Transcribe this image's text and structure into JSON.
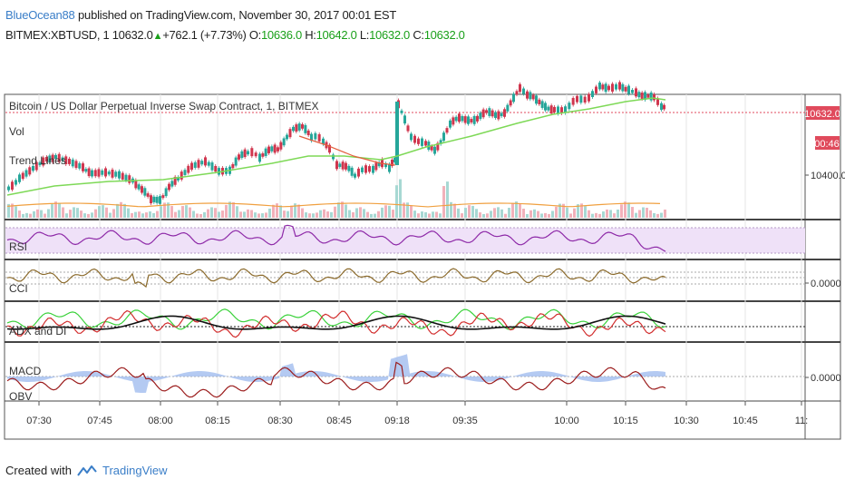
{
  "header": {
    "author": "BlueOcean88",
    "published_text": " published on TradingView.com, November 30, 2017 00:01 EST"
  },
  "ticker": {
    "symbol": "BITMEX:XBTUSD, 1",
    "last": "10632.0",
    "arrow": "▲",
    "change": "+762.1 (+7.73%)",
    "o_label": "O:",
    "o_value": "10636.0",
    "h_label": "H:",
    "h_value": "10642.0",
    "l_label": "L:",
    "l_value": "10632.0",
    "c_label": "C:",
    "c_value": "10632.0"
  },
  "main_pane": {
    "title": "Bitcoin / US Dollar Perpetual Inverse Swap Contract, 1, BITMEX",
    "vol_label": "Vol",
    "trend_label": "Trend Lines",
    "price_badge": "10632.0",
    "countdown_badge": "00:46",
    "axis_label": "10400.0"
  },
  "panes": {
    "rsi_label": "RSI",
    "cci_label": "CCI",
    "cci_axis": "0.0000",
    "adx_label": "ADX and DI",
    "macd_label": "MACD",
    "obv_label": "OBV",
    "macd_axis": "0.0000"
  },
  "time_axis": [
    "07:30",
    "07:45",
    "08:00",
    "08:15",
    "08:30",
    "08:45",
    "09:18",
    "09:35",
    "10:00",
    "10:15",
    "10:30",
    "10:45",
    "11:"
  ],
  "footer": {
    "created_with": "Created with",
    "brand": "TradingView"
  },
  "colors": {
    "up": "#26a69a",
    "down": "#d0364e",
    "green_line": "#7ed957",
    "rsi": "#8e2aa8",
    "cci": "#8b6a2b",
    "badge": "#e04a5c",
    "macd_area": "#9bb8ee",
    "macd_line": "#9b1c1c"
  }
}
